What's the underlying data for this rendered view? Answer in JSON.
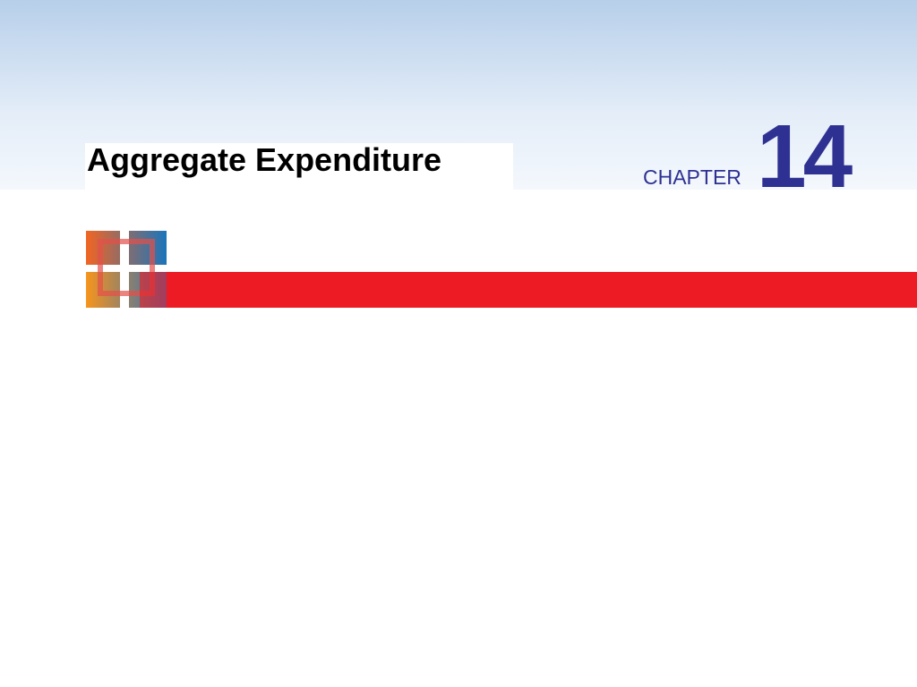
{
  "header": {
    "title": "Aggregate Expenditure",
    "chapter_label": "CHAPTER",
    "chapter_number": "14"
  }
}
